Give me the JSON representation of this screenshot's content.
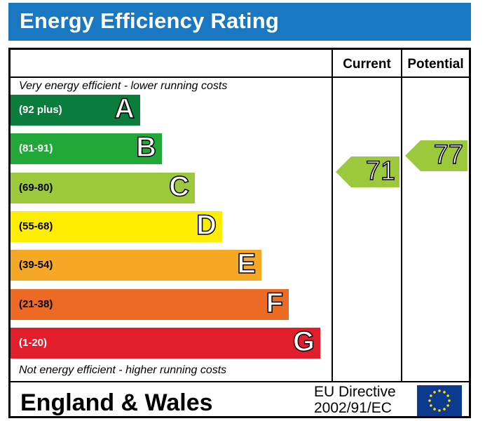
{
  "title": "Energy Efficiency Rating",
  "columns": {
    "current": "Current",
    "potential": "Potential"
  },
  "captions": {
    "top": "Very energy efficient - lower running costs",
    "bottom": "Not energy efficient - higher running costs"
  },
  "footer": {
    "region": "England & Wales",
    "directive_line1": "EU Directive",
    "directive_line2": "2002/91/EC"
  },
  "chart_data": {
    "type": "bar",
    "title": "Energy Efficiency Rating",
    "categories": [
      "A",
      "B",
      "C",
      "D",
      "E",
      "F",
      "G"
    ],
    "bands": [
      {
        "letter": "A",
        "range": "(92 plus)",
        "color": "#0a7d3d"
      },
      {
        "letter": "B",
        "range": "(81-91)",
        "color": "#22a838"
      },
      {
        "letter": "C",
        "range": "(69-80)",
        "color": "#9bc93b"
      },
      {
        "letter": "D",
        "range": "(55-68)",
        "color": "#ffed00"
      },
      {
        "letter": "E",
        "range": "(39-54)",
        "color": "#f4a826"
      },
      {
        "letter": "F",
        "range": "(21-38)",
        "color": "#ec6a24"
      },
      {
        "letter": "G",
        "range": "(1-20)",
        "color": "#e31e2c"
      }
    ],
    "current": {
      "value": 71,
      "band": "C",
      "color": "#9bc93b"
    },
    "potential": {
      "value": 77,
      "band": "C",
      "color": "#9bc93b"
    }
  }
}
